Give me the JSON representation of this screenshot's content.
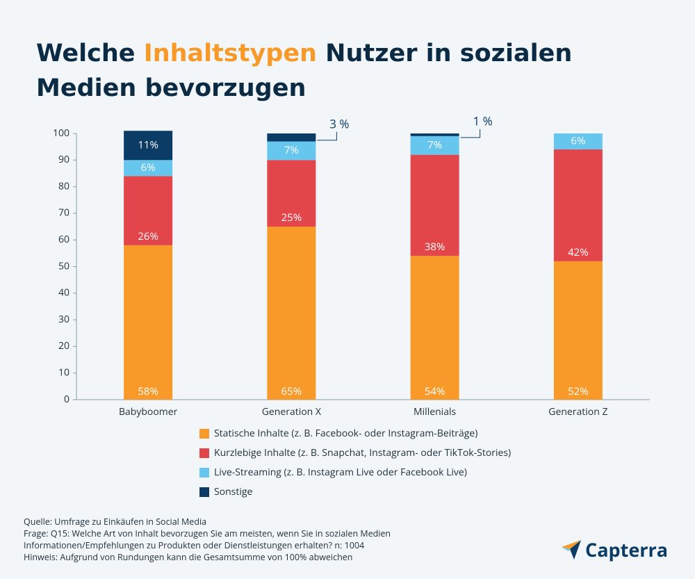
{
  "chart_data": {
    "type": "stacked-bar",
    "title_parts": [
      "Welche",
      "Inhaltstypen",
      "Nutzer in sozialen Medien bevorzugen"
    ],
    "title_highlight": 1,
    "categories": [
      "Babyboomer",
      "Generation X",
      "Millenials",
      "Generation Z"
    ],
    "series": [
      {
        "name": "Statische Inhalte (z. B. Facebook- oder Instagram-Beiträge)",
        "color": "#f79a2a",
        "values": [
          58,
          65,
          54,
          52
        ],
        "value_labels": [
          "58%",
          "65%",
          "54%",
          "52%"
        ]
      },
      {
        "name": "Kurzlebige Inhalte (z. B. Snapchat, Instagram- oder TikTok-Stories)",
        "color": "#e2454a",
        "values": [
          26,
          25,
          38,
          42
        ],
        "value_labels": [
          "26%",
          "25%",
          "38%",
          "42%"
        ]
      },
      {
        "name": "Live-Streaming (z. B. Instagram Live oder Facebook Live)",
        "color": "#67c6ee",
        "values": [
          6,
          7,
          7,
          6
        ],
        "value_labels": [
          "6%",
          "7%",
          "7%",
          "6%"
        ]
      },
      {
        "name": "Sonstige",
        "color": "#0b3c66",
        "values": [
          11,
          3,
          1,
          null
        ],
        "value_labels": [
          "11%",
          "3 %",
          "1 %",
          null
        ]
      }
    ],
    "ylim": [
      0,
      100
    ],
    "yticks": [
      0,
      10,
      20,
      30,
      40,
      50,
      60,
      70,
      80,
      90,
      100
    ],
    "footnotes": [
      "Quelle: Umfrage zu Einkäufen in Social Media",
      "Frage: Q15: Welche Art von Inhalt bevorzugen Sie am meisten, wenn Sie in sozialen Medien",
      "Informationen/Empfehlungen zu Produkten oder Dienstleistungen erhalten? n: 1004",
      "Hinweis: Aufgrund von Rundungen kann die Gesamtsumme von 100% abweichen"
    ],
    "brand": "Capterra"
  }
}
